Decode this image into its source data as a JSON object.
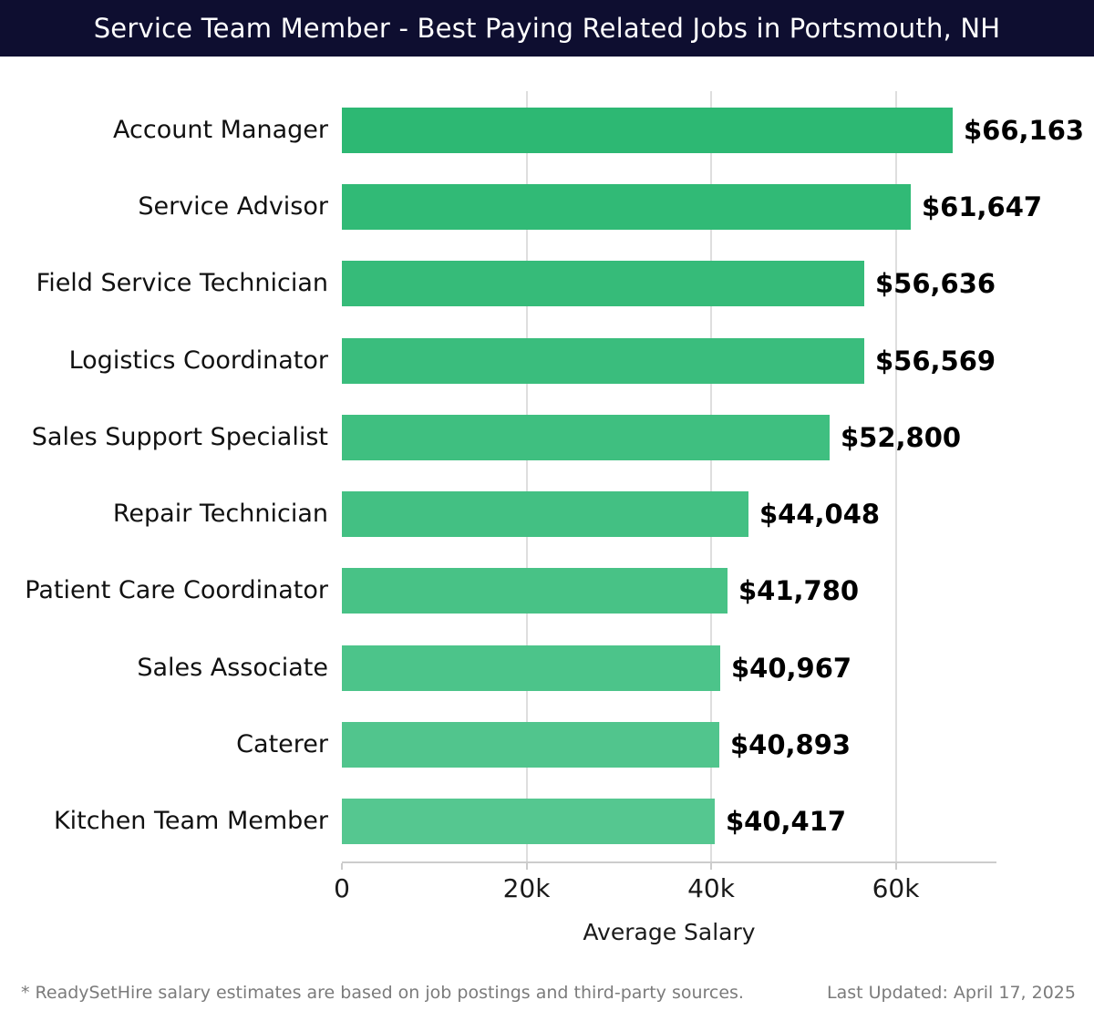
{
  "header": {
    "title": "Service Team Member - Best Paying Related Jobs in Portsmouth, NH",
    "bg_color": "#0e0e30",
    "text_color": "#ffffff"
  },
  "chart_data": {
    "type": "bar",
    "orientation": "horizontal",
    "title": "Service Team Member - Best Paying Related Jobs in Portsmouth, NH",
    "categories": [
      "Account Manager",
      "Service Advisor",
      "Field Service Technician",
      "Logistics Coordinator",
      "Sales Support Specialist",
      "Repair Technician",
      "Patient Care Coordinator",
      "Sales Associate",
      "Caterer",
      "Kitchen Team Member"
    ],
    "values": [
      66163,
      61647,
      56636,
      56569,
      52800,
      44048,
      41780,
      40967,
      40893,
      40417
    ],
    "value_labels": [
      "$66,163",
      "$61,647",
      "$56,636",
      "$56,569",
      "$52,800",
      "$44,048",
      "$41,780",
      "$40,967",
      "$40,893",
      "$40,417"
    ],
    "xlabel": "Average Salary",
    "xticks": [
      "0",
      "20k",
      "40k",
      "60k"
    ],
    "xtick_values": [
      0,
      20000,
      40000,
      60000
    ],
    "xlim": [
      0,
      70800
    ],
    "grid": true,
    "legend_position": "none",
    "bar_color_start": "#2db873",
    "bar_color_end": "#55c790",
    "gridline_color": "#dedede",
    "axis_color": "#cccccc"
  },
  "footer": {
    "note": "* ReadySetHire salary estimates are based on job postings and third-party sources.",
    "last_updated": "Last Updated: April 17, 2025"
  }
}
